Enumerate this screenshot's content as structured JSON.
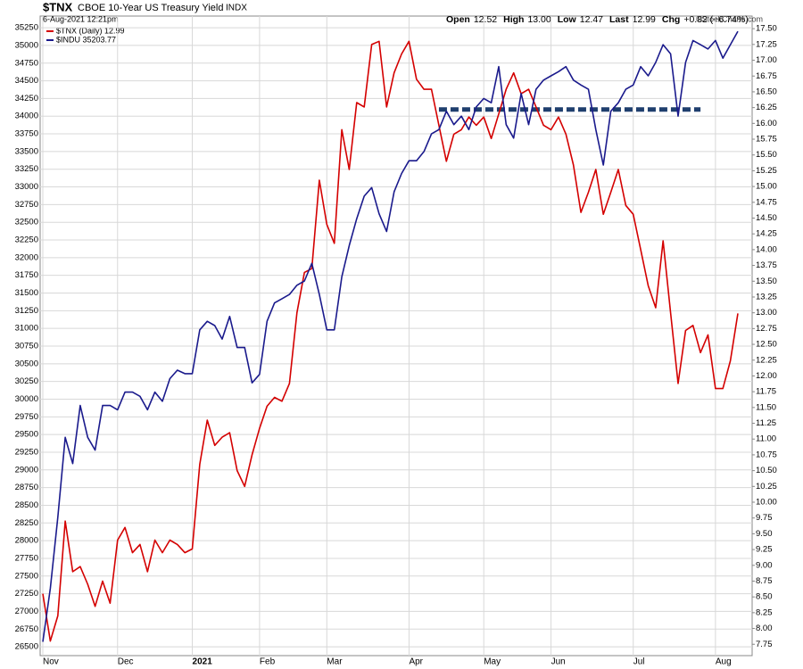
{
  "header": {
    "symbol": "$TNX",
    "description": "CBOE 10-Year US Treasury Yield",
    "exchange": "INDX",
    "date": "6-Aug-2021 12:21pm",
    "quote": [
      {
        "label": "Open",
        "value": "12.52"
      },
      {
        "label": "High",
        "value": "13.00"
      },
      {
        "label": "Low",
        "value": "12.47"
      },
      {
        "label": "Last",
        "value": "12.99"
      },
      {
        "label": "Chg",
        "value": "+0.82 (+6.74%)"
      }
    ],
    "credit": "©StockCharts.com"
  },
  "chart_data": {
    "type": "line",
    "categories": [
      "Nov",
      null,
      null,
      null,
      null,
      null,
      null,
      null,
      null,
      null,
      "Dec",
      null,
      null,
      null,
      null,
      null,
      null,
      null,
      null,
      null,
      "2021",
      null,
      null,
      null,
      null,
      null,
      null,
      null,
      null,
      "Feb",
      null,
      null,
      null,
      null,
      null,
      null,
      null,
      null,
      "Mar",
      null,
      null,
      null,
      null,
      null,
      null,
      null,
      null,
      null,
      null,
      "Apr",
      null,
      null,
      null,
      null,
      null,
      null,
      null,
      null,
      null,
      "May",
      null,
      null,
      null,
      null,
      null,
      null,
      null,
      null,
      "Jun",
      null,
      null,
      null,
      null,
      null,
      null,
      null,
      null,
      null,
      null,
      "Jul",
      null,
      null,
      null,
      null,
      null,
      null,
      null,
      null,
      null,
      null,
      "Aug",
      null,
      null,
      null
    ],
    "series": [
      {
        "name": "$TNX (Daily) 12.99",
        "color": "#d40000",
        "axis": "y2",
        "values": [
          8.55,
          7.8,
          8.2,
          9.7,
          8.9,
          8.98,
          8.7,
          8.35,
          8.75,
          8.4,
          9.4,
          9.6,
          9.2,
          9.33,
          8.9,
          9.4,
          9.2,
          9.4,
          9.33,
          9.2,
          9.26,
          10.6,
          11.3,
          10.9,
          11.03,
          11.1,
          10.5,
          10.25,
          10.75,
          11.17,
          11.52,
          11.66,
          11.6,
          11.88,
          13.0,
          13.64,
          13.7,
          15.1,
          14.4,
          14.1,
          15.9,
          15.27,
          16.33,
          16.26,
          17.25,
          17.3,
          16.26,
          16.8,
          17.1,
          17.3,
          16.7,
          16.54,
          16.54,
          15.97,
          15.4,
          15.83,
          15.9,
          16.1,
          15.97,
          16.1,
          15.76,
          16.15,
          16.54,
          16.8,
          16.47,
          16.54,
          16.26,
          15.97,
          15.9,
          16.1,
          15.83,
          15.34,
          14.59,
          14.91,
          15.27,
          14.56,
          14.91,
          15.27,
          14.7,
          14.56,
          14.0,
          13.43,
          13.08,
          14.14,
          13.0,
          11.88,
          12.72,
          12.8,
          12.37,
          12.65,
          11.8,
          11.8,
          12.24,
          12.99
        ]
      },
      {
        "name": "$INDU 35203.77",
        "color": "#1a1a8c",
        "axis": "y",
        "values": [
          26570,
          27325,
          28330,
          29460,
          29090,
          29910,
          29460,
          29280,
          29910,
          29910,
          29850,
          30100,
          30100,
          30040,
          29850,
          30100,
          29970,
          30290,
          30410,
          30360,
          30360,
          30980,
          31100,
          31040,
          30850,
          31170,
          30730,
          30730,
          30230,
          30350,
          31100,
          31360,
          31420,
          31480,
          31610,
          31670,
          31920,
          31480,
          30980,
          30980,
          31730,
          32170,
          32550,
          32870,
          32990,
          32620,
          32370,
          32930,
          33190,
          33370,
          33370,
          33500,
          33750,
          33810,
          34070,
          33880,
          34000,
          33810,
          34130,
          34250,
          34190,
          34700,
          33880,
          33690,
          34320,
          33880,
          34380,
          34510,
          34570,
          34630,
          34700,
          34510,
          34440,
          34380,
          33810,
          33310,
          34070,
          34190,
          34380,
          34440,
          34700,
          34570,
          34760,
          35010,
          34880,
          34000,
          34760,
          35070,
          35010,
          34950,
          35070,
          34820,
          35010,
          35200
        ]
      }
    ],
    "annotation_line": {
      "value": 16.22,
      "axis": "y2",
      "start": 53,
      "end": 88,
      "color": "#1f3f6e"
    },
    "ylim": [
      26375,
      35415
    ],
    "yticks": [
      26500,
      26750,
      27000,
      27250,
      27500,
      27750,
      28000,
      28250,
      28500,
      28750,
      29000,
      29250,
      29500,
      29750,
      30000,
      30250,
      30500,
      30750,
      31000,
      31250,
      31500,
      31750,
      32000,
      32250,
      32500,
      32750,
      33000,
      33250,
      33500,
      33750,
      34000,
      34250,
      34500,
      34750,
      35000,
      35250
    ],
    "y2lim": [
      7.57,
      17.7
    ],
    "y2ticks": [
      7.75,
      {
        "value": 8,
        "label": "8.00"
      },
      8.25,
      {
        "value": 8.5,
        "label": "8.50"
      },
      8.75,
      {
        "value": 9,
        "label": "9.00"
      },
      9.25,
      {
        "value": 9.5,
        "label": "9.50"
      },
      9.75,
      {
        "value": 10,
        "label": "10.00"
      },
      10.25,
      {
        "value": 10.5,
        "label": "10.50"
      },
      10.75,
      {
        "value": 11,
        "label": "11.00"
      },
      11.25,
      {
        "value": 11.5,
        "label": "11.50"
      },
      11.75,
      {
        "value": 12,
        "label": "12.00"
      },
      12.25,
      {
        "value": 12.5,
        "label": "12.50"
      },
      12.75,
      {
        "value": 13,
        "label": "13.00"
      },
      13.25,
      {
        "value": 13.5,
        "label": "13.50"
      },
      13.75,
      {
        "value": 14,
        "label": "14.00"
      },
      14.25,
      {
        "value": 14.5,
        "label": "14.50"
      },
      14.75,
      {
        "value": 15,
        "label": "15.00"
      },
      15.25,
      {
        "value": 15.5,
        "label": "15.50"
      },
      15.75,
      {
        "value": 16,
        "label": "16.00"
      },
      16.25,
      {
        "value": 16.5,
        "label": "16.50"
      },
      16.75,
      {
        "value": 17,
        "label": "17.00"
      },
      17.25,
      {
        "value": 17.5,
        "label": "17.50"
      }
    ],
    "grid": true
  }
}
